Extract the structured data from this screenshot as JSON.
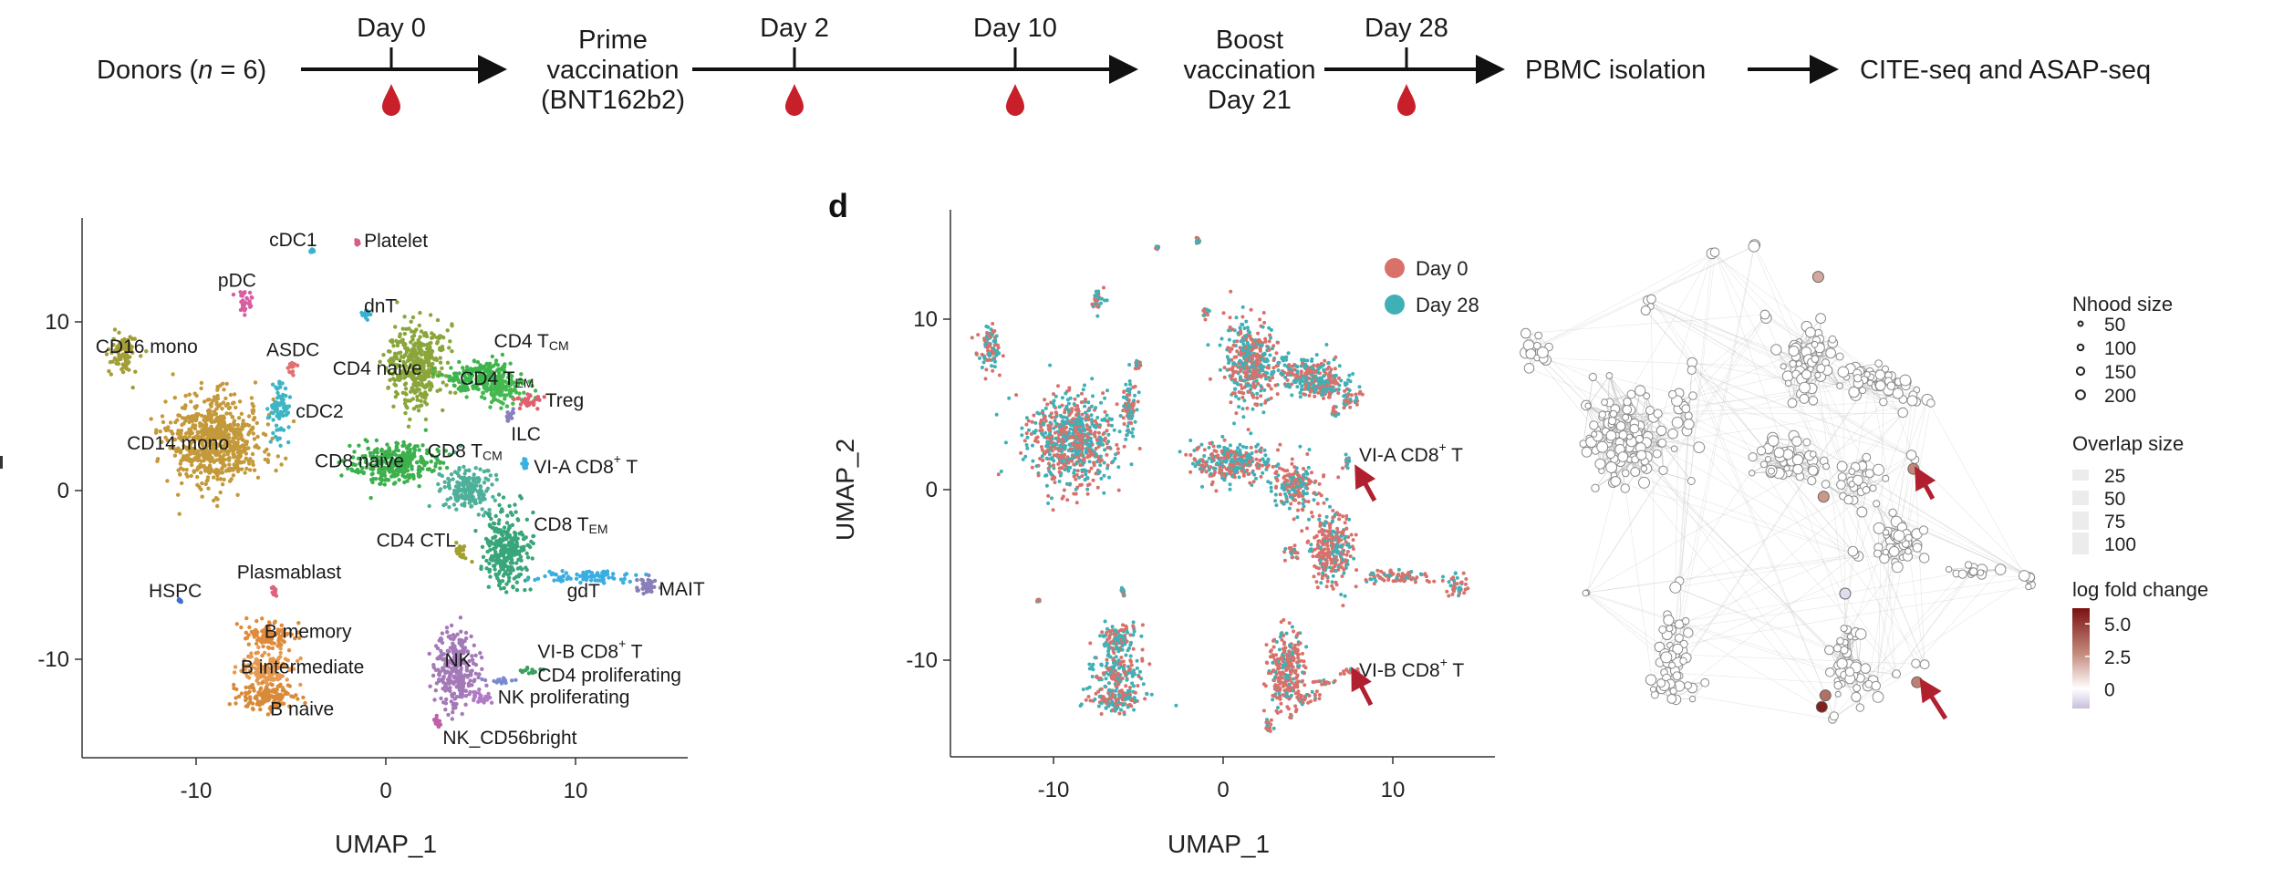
{
  "timeline": {
    "donors": {
      "prefix": "Donors (",
      "n": "n",
      "suffix": " = 6)"
    },
    "prime": [
      "Prime",
      "vaccination",
      "(BNT162b2)"
    ],
    "boost": [
      "Boost",
      "vaccination",
      "Day 21"
    ],
    "pbmc": "PBMC isolation",
    "assay": "CITE-seq and ASAP-seq",
    "timepoints": [
      "Day 0",
      "Day 2",
      "Day 10",
      "Day 28"
    ],
    "blood_color": "#c8202a",
    "icon": "blood-drop-icon"
  },
  "chart_data": [
    {
      "type": "scatter",
      "panel": "",
      "xlabel": "UMAP_1",
      "ylabel": "",
      "xlim": [
        -16,
        16
      ],
      "ylim": [
        -15.7,
        16
      ],
      "xticks": [
        "-10",
        "0",
        "10"
      ],
      "yticks": [
        "10",
        "0",
        "-10"
      ],
      "clusters": [
        {
          "name": "CD14 mono",
          "x": -9.0,
          "y": 2.9,
          "rx": 2.5,
          "ry": 2.6,
          "color": "#c4993a"
        },
        {
          "name": "CD16 mono",
          "x": -13.8,
          "y": 8.3,
          "rx": 0.7,
          "ry": 1.2,
          "color": "#a39d38"
        },
        {
          "name": "cDC2",
          "x": -5.6,
          "y": 4.8,
          "rx": 0.5,
          "ry": 1.6,
          "color": "#3db5c5"
        },
        {
          "name": "ASDC",
          "x": -5.0,
          "y": 7.3,
          "rx": 0.2,
          "ry": 0.4,
          "color": "#e07070"
        },
        {
          "name": "pDC",
          "x": -7.4,
          "y": 11.2,
          "rx": 0.4,
          "ry": 0.7,
          "color": "#d55fa0"
        },
        {
          "name": "cDC1",
          "x": -3.9,
          "y": 14.2,
          "rx": 0.1,
          "ry": 0.1,
          "color": "#3bb0d0"
        },
        {
          "name": "Platelet",
          "x": -1.5,
          "y": 14.7,
          "rx": 0.1,
          "ry": 0.15,
          "color": "#d55f8a"
        },
        {
          "name": "dnT",
          "x": -1.0,
          "y": 10.4,
          "rx": 0.3,
          "ry": 0.3,
          "color": "#3bb0d0"
        },
        {
          "name": "CD4 naive",
          "x": 1.6,
          "y": 7.4,
          "rx": 1.5,
          "ry": 2.4,
          "color": "#8aa63a"
        },
        {
          "name": "CD4 TCM",
          "x": 4.9,
          "y": 6.8,
          "rx": 1.8,
          "ry": 1.0,
          "color": "#3db54d"
        },
        {
          "name": "CD4 TEM",
          "x": 6.0,
          "y": 6.0,
          "rx": 1.3,
          "ry": 0.8,
          "color": "#45b84f"
        },
        {
          "name": "Treg",
          "x": 7.6,
          "y": 5.3,
          "rx": 0.6,
          "ry": 0.5,
          "color": "#e0606e"
        },
        {
          "name": "ILC",
          "x": 6.6,
          "y": 4.5,
          "rx": 0.2,
          "ry": 0.4,
          "color": "#8a80c0"
        },
        {
          "name": "CD8 naive",
          "x": 0.5,
          "y": 1.6,
          "rx": 2.3,
          "ry": 1.2,
          "color": "#3cb04c"
        },
        {
          "name": "CD8 TCM",
          "x": 4.3,
          "y": 0.2,
          "rx": 1.3,
          "ry": 1.3,
          "color": "#4fb09a"
        },
        {
          "name": "VI-A CD8+ T",
          "x": 7.3,
          "y": 1.6,
          "rx": 0.15,
          "ry": 0.4,
          "color": "#3ab0e0"
        },
        {
          "name": "CD8 TEM",
          "x": 6.4,
          "y": -3.4,
          "rx": 1.2,
          "ry": 2.2,
          "color": "#38a57a"
        },
        {
          "name": "CD4 CTL",
          "x": 4.0,
          "y": -3.7,
          "rx": 0.4,
          "ry": 0.5,
          "color": "#a3a032"
        },
        {
          "name": "gdT",
          "x": 10.4,
          "y": -5.1,
          "rx": 2.2,
          "ry": 0.35,
          "color": "#3aaee0"
        },
        {
          "name": "MAIT",
          "x": 13.8,
          "y": -5.7,
          "rx": 0.6,
          "ry": 0.6,
          "color": "#8a7fb8"
        },
        {
          "name": "HSPC",
          "x": -10.9,
          "y": -6.5,
          "rx": 0.1,
          "ry": 0.1,
          "color": "#3b6fd0"
        },
        {
          "name": "Plasmablast",
          "x": -5.9,
          "y": -6.0,
          "rx": 0.1,
          "ry": 0.3,
          "color": "#e06080"
        },
        {
          "name": "B memory",
          "x": -6.1,
          "y": -8.7,
          "rx": 1.2,
          "ry": 0.8,
          "color": "#e08a3c"
        },
        {
          "name": "B intermediate",
          "x": -6.3,
          "y": -10.6,
          "rx": 1.3,
          "ry": 1.0,
          "color": "#e59a50"
        },
        {
          "name": "B naive",
          "x": -6.2,
          "y": -12.3,
          "rx": 1.6,
          "ry": 0.8,
          "color": "#d98a38"
        },
        {
          "name": "NK",
          "x": 3.7,
          "y": -10.6,
          "rx": 1.1,
          "ry": 2.3,
          "color": "#a479b8"
        },
        {
          "name": "NK proliferating",
          "x": 5.0,
          "y": -12.2,
          "rx": 0.6,
          "ry": 0.4,
          "color": "#b07ac4"
        },
        {
          "name": "NK_CD56bright",
          "x": 2.7,
          "y": -13.8,
          "rx": 0.2,
          "ry": 0.5,
          "color": "#c060a8"
        },
        {
          "name": "VI-B CD8+ T",
          "x": 7.5,
          "y": -10.7,
          "rx": 0.6,
          "ry": 0.2,
          "color": "#3aa060"
        },
        {
          "name": "CD4 proliferating",
          "x": 6.0,
          "y": -11.3,
          "rx": 0.7,
          "ry": 0.2,
          "color": "#7a8ad0"
        }
      ],
      "labels": [
        {
          "main": "cDC1",
          "x": -6.15,
          "y": 14.8
        },
        {
          "main": "Platelet",
          "x": -1.15,
          "y": 14.76
        },
        {
          "main": "pDC",
          "x": -8.85,
          "y": 12.4
        },
        {
          "main": "dnT",
          "x": -1.15,
          "y": 10.9
        },
        {
          "main": "CD16 mono",
          "x": -15.3,
          "y": 8.5
        },
        {
          "main": "ASDC",
          "x": -6.3,
          "y": 8.3
        },
        {
          "main": "CD4 naive",
          "x": -2.8,
          "y": 7.2
        },
        {
          "main": "CD4 T",
          "sub": "CM",
          "x": 5.7,
          "y": 8.8
        },
        {
          "main": "CD4 T",
          "sub": "EM",
          "x": 3.9,
          "y": 6.6
        },
        {
          "main": "Treg",
          "x": 8.4,
          "y": 5.3
        },
        {
          "main": "cDC2",
          "x": -4.75,
          "y": 4.65
        },
        {
          "main": "ILC",
          "x": 6.6,
          "y": 3.3
        },
        {
          "main": "CD14 mono",
          "x": -13.65,
          "y": 2.75
        },
        {
          "main": "CD8 naive",
          "x": -3.75,
          "y": 1.7
        },
        {
          "main": "CD8 T",
          "sub": "CM",
          "x": 2.2,
          "y": 2.3
        },
        {
          "main": "VI-A CD8",
          "sup": "+",
          "tail": " T",
          "x": 7.8,
          "y": 1.35
        },
        {
          "main": "CD8 T",
          "sub": "EM",
          "x": 7.8,
          "y": -2.05
        },
        {
          "main": "CD4 CTL",
          "x": -0.5,
          "y": -3.0
        },
        {
          "main": "Plasmablast",
          "x": -7.85,
          "y": -4.9
        },
        {
          "main": "HSPC",
          "x": -12.5,
          "y": -6.0
        },
        {
          "main": "gdT",
          "x": 9.55,
          "y": -6.0
        },
        {
          "main": "MAIT",
          "x": 14.4,
          "y": -5.9
        },
        {
          "main": "B memory",
          "x": -6.4,
          "y": -8.4
        },
        {
          "main": "VI-B CD8",
          "sup": "+",
          "tail": " T",
          "x": 8.0,
          "y": -9.6
        },
        {
          "main": "NK",
          "x": 3.1,
          "y": -10.1
        },
        {
          "main": "B intermediate",
          "x": -7.65,
          "y": -10.5
        },
        {
          "main": "CD4 proliferating",
          "x": 8.0,
          "y": -11.0
        },
        {
          "main": "NK proliferating",
          "x": 5.9,
          "y": -12.3
        },
        {
          "main": "B naive",
          "x": -6.1,
          "y": -13.0
        },
        {
          "main": "NK_CD56bright",
          "x": 3.0,
          "y": -14.7
        }
      ]
    },
    {
      "type": "scatter",
      "panel": "d",
      "xlabel": "UMAP_1",
      "ylabel": "UMAP_2",
      "xlim": [
        -15.3,
        16
      ],
      "ylim": [
        -15.7,
        16
      ],
      "xticks": [
        "-10",
        "0",
        "10"
      ],
      "yticks": [
        "10",
        "0",
        "-10"
      ],
      "legend": "top-right",
      "series": [
        {
          "name": "Day 0",
          "color": "#d9716a"
        },
        {
          "name": "Day 28",
          "color": "#3fb0b6"
        }
      ],
      "annotations": [
        {
          "main": "VI-A CD8",
          "sup": "+",
          "tail": " T",
          "x": 8.0,
          "y": 1.9
        },
        {
          "main": "VI-B CD8",
          "sup": "+",
          "tail": " T",
          "x": 8.0,
          "y": -10.5
        }
      ],
      "arrow_color": "#b0202e"
    },
    {
      "type": "network",
      "panel": "",
      "legend": {
        "nhood_title": "Nhood size",
        "nhood_sizes": [
          "50",
          "100",
          "150",
          "200"
        ],
        "overlap_title": "Overlap size",
        "overlap_sizes": [
          "25",
          "50",
          "75",
          "100"
        ],
        "lfc_title": "log fold change",
        "lfc_ticks": [
          "5.0",
          "2.5",
          "0"
        ],
        "lfc_range": [
          -1.5,
          6.2
        ],
        "lfc_colors": [
          "#c9bedc",
          "#ffffff",
          "#c48a7c",
          "#7a1212"
        ]
      },
      "node_fill": "#ffffff",
      "node_stroke": "#8a8a8a",
      "edge_color": "#b8b8b8",
      "highlighted_nodes": [
        {
          "x": 7.3,
          "y": 1.1,
          "lfc": 2.8
        },
        {
          "x": 7.5,
          "y": -11.9,
          "lfc": 3.0
        },
        {
          "x": 2.2,
          "y": -13.4,
          "lfc": 5.8
        },
        {
          "x": 2.4,
          "y": -12.7,
          "lfc": 3.5
        },
        {
          "x": 2.3,
          "y": -0.6,
          "lfc": 2.4
        },
        {
          "x": 2.0,
          "y": 12.8,
          "lfc": 2.0
        },
        {
          "x": 3.5,
          "y": -6.5,
          "lfc": -0.8
        }
      ],
      "arrow_color": "#b0202e"
    }
  ]
}
